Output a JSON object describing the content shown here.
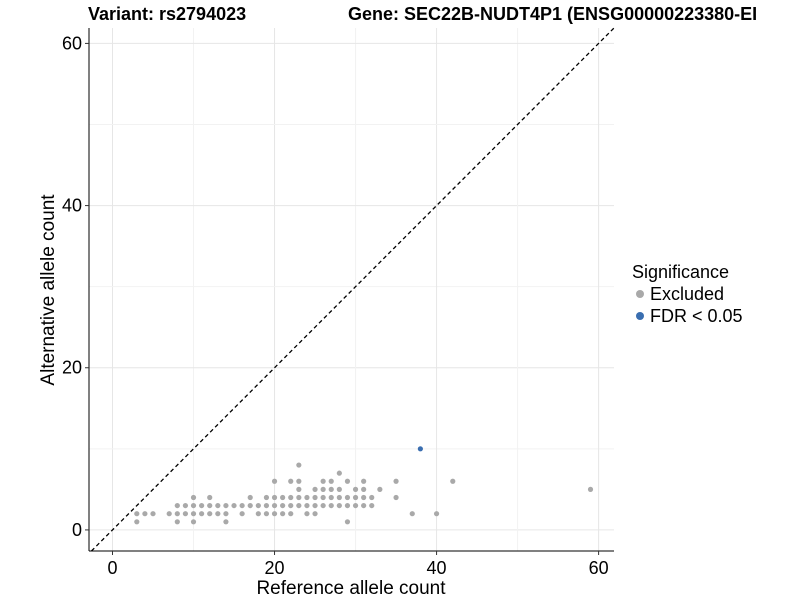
{
  "titles": {
    "left": "Variant: rs2794023",
    "right": "Gene: SEC22B-NUDT4P1 (ENSG00000223380-EI"
  },
  "legend": {
    "title": "Significance",
    "items": [
      {
        "label": "Excluded",
        "color": "#a9a9a9"
      },
      {
        "label": "FDR < 0.05",
        "color": "#3a6eb0"
      }
    ]
  },
  "chart_data": {
    "type": "scatter",
    "xlabel": "Reference allele count",
    "ylabel": "Alternative allele count",
    "xlim": [
      -2.9,
      61.9
    ],
    "ylim": [
      -2.6,
      61.9
    ],
    "xticks": [
      0,
      20,
      40,
      60
    ],
    "yticks": [
      0,
      20,
      40,
      60
    ],
    "grid": true,
    "reference_line": "y = x (dashed)",
    "legend_position": "right",
    "series": [
      {
        "name": "Excluded",
        "color": "#a9a9a9",
        "points": [
          [
            3,
            1
          ],
          [
            3,
            2
          ],
          [
            4,
            2
          ],
          [
            5,
            2
          ],
          [
            7,
            2
          ],
          [
            8,
            1
          ],
          [
            8,
            2
          ],
          [
            8,
            3
          ],
          [
            9,
            2
          ],
          [
            9,
            3
          ],
          [
            10,
            1
          ],
          [
            10,
            2
          ],
          [
            10,
            3
          ],
          [
            10,
            4
          ],
          [
            11,
            2
          ],
          [
            11,
            3
          ],
          [
            12,
            2
          ],
          [
            12,
            3
          ],
          [
            12,
            4
          ],
          [
            13,
            2
          ],
          [
            13,
            3
          ],
          [
            14,
            1
          ],
          [
            14,
            2
          ],
          [
            14,
            3
          ],
          [
            15,
            3
          ],
          [
            16,
            2
          ],
          [
            16,
            3
          ],
          [
            17,
            3
          ],
          [
            17,
            4
          ],
          [
            18,
            2
          ],
          [
            18,
            3
          ],
          [
            19,
            2
          ],
          [
            19,
            3
          ],
          [
            19,
            4
          ],
          [
            20,
            2
          ],
          [
            20,
            3
          ],
          [
            20,
            4
          ],
          [
            20,
            6
          ],
          [
            21,
            2
          ],
          [
            21,
            3
          ],
          [
            21,
            4
          ],
          [
            22,
            2
          ],
          [
            22,
            3
          ],
          [
            22,
            4
          ],
          [
            22,
            6
          ],
          [
            23,
            3
          ],
          [
            23,
            4
          ],
          [
            23,
            5
          ],
          [
            23,
            6
          ],
          [
            23,
            8
          ],
          [
            24,
            2
          ],
          [
            24,
            3
          ],
          [
            24,
            4
          ],
          [
            25,
            2
          ],
          [
            25,
            3
          ],
          [
            25,
            4
          ],
          [
            25,
            5
          ],
          [
            26,
            3
          ],
          [
            26,
            4
          ],
          [
            26,
            5
          ],
          [
            26,
            6
          ],
          [
            27,
            3
          ],
          [
            27,
            4
          ],
          [
            27,
            5
          ],
          [
            27,
            6
          ],
          [
            28,
            3
          ],
          [
            28,
            4
          ],
          [
            28,
            5
          ],
          [
            28,
            7
          ],
          [
            29,
            1
          ],
          [
            29,
            3
          ],
          [
            29,
            4
          ],
          [
            29,
            6
          ],
          [
            30,
            3
          ],
          [
            30,
            4
          ],
          [
            30,
            5
          ],
          [
            31,
            3
          ],
          [
            31,
            4
          ],
          [
            31,
            5
          ],
          [
            31,
            6
          ],
          [
            32,
            3
          ],
          [
            32,
            4
          ],
          [
            33,
            5
          ],
          [
            35,
            4
          ],
          [
            35,
            6
          ],
          [
            37,
            2
          ],
          [
            40,
            2
          ],
          [
            42,
            6
          ],
          [
            59,
            5
          ]
        ]
      },
      {
        "name": "FDR < 0.05",
        "color": "#3a6eb0",
        "points": [
          [
            38,
            10
          ]
        ]
      }
    ]
  }
}
